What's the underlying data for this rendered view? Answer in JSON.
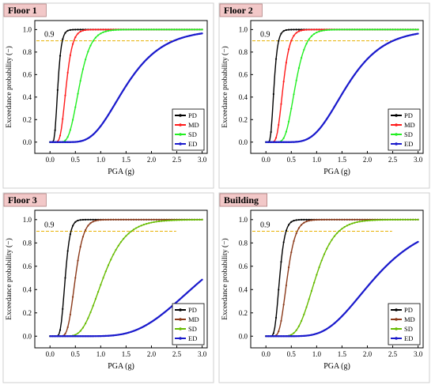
{
  "chart_data": [
    {
      "type": "line",
      "panel_label": "Floor 1",
      "xlabel": "PGA (g)",
      "ylabel": "Exceedance probability (−)",
      "xlim": [
        -0.3,
        3.1
      ],
      "ylim": [
        -0.1,
        1.08
      ],
      "x_ticks": [
        "0.0",
        "0.5",
        "1.0",
        "1.5",
        "2.0",
        "2.5",
        "3.0"
      ],
      "y_ticks": [
        "0.0",
        "0.2",
        "0.4",
        "0.6",
        "0.8",
        "1.0"
      ],
      "threshold": {
        "label": "0.9",
        "value": 0.9,
        "color": "#e8b000"
      },
      "legend_position": "lower-right",
      "series": [
        {
          "name": "PD",
          "color": "#000000",
          "median": 0.155,
          "beta": 0.35
        },
        {
          "name": "MD",
          "color": "#ff1a1a",
          "median": 0.32,
          "beta": 0.3
        },
        {
          "name": "SD",
          "color": "#22ee22",
          "median": 0.58,
          "beta": 0.3
        },
        {
          "name": "ED",
          "color": "#1a1acc",
          "median": 1.5,
          "beta": 0.38
        }
      ]
    },
    {
      "type": "line",
      "panel_label": "Floor 2",
      "xlabel": "PGA (g)",
      "ylabel": "Exceedance probability (−)",
      "xlim": [
        -0.3,
        3.1
      ],
      "ylim": [
        -0.1,
        1.08
      ],
      "x_ticks": [
        "0.0",
        "0.5",
        "1.0",
        "1.5",
        "2.0",
        "2.5",
        "3.0"
      ],
      "y_ticks": [
        "0.0",
        "0.2",
        "0.4",
        "0.6",
        "0.8",
        "1.0"
      ],
      "threshold": {
        "label": "0.9",
        "value": 0.9,
        "color": "#e8b000"
      },
      "legend_position": "lower-right",
      "series": [
        {
          "name": "PD",
          "color": "#000000",
          "median": 0.16,
          "beta": 0.35
        },
        {
          "name": "MD",
          "color": "#ff1a1a",
          "median": 0.34,
          "beta": 0.3
        },
        {
          "name": "SD",
          "color": "#22ee22",
          "median": 0.58,
          "beta": 0.28
        },
        {
          "name": "ED",
          "color": "#1a1acc",
          "median": 1.6,
          "beta": 0.35
        }
      ]
    },
    {
      "type": "line",
      "panel_label": "Floor 3",
      "xlabel": "PGA (g)",
      "ylabel": "Exceedance probability (−)",
      "xlim": [
        -0.3,
        3.1
      ],
      "ylim": [
        -0.1,
        1.08
      ],
      "x_ticks": [
        "0.0",
        "0.5",
        "1.0",
        "1.5",
        "2.0",
        "2.5",
        "3.0"
      ],
      "y_ticks": [
        "0.0",
        "0.2",
        "0.4",
        "0.6",
        "0.8",
        "1.0"
      ],
      "threshold": {
        "label": "0.9",
        "value": 0.9,
        "color": "#e8b000"
      },
      "legend_position": "lower-right",
      "series": [
        {
          "name": "PD",
          "color": "#000000",
          "median": 0.3,
          "beta": 0.25
        },
        {
          "name": "MD",
          "color": "#8b3a1a",
          "median": 0.5,
          "beta": 0.25
        },
        {
          "name": "SD",
          "color": "#66bb00",
          "median": 1.05,
          "beta": 0.33
        },
        {
          "name": "ED",
          "color": "#1a1acc",
          "median": 3.04,
          "beta": 0.36
        }
      ]
    },
    {
      "type": "line",
      "panel_label": "Building",
      "xlabel": "PGA (g)",
      "ylabel": "Exceedance probability (−)",
      "xlim": [
        -0.3,
        3.1
      ],
      "ylim": [
        -0.1,
        1.08
      ],
      "x_ticks": [
        "0.0",
        "0.5",
        "1.0",
        "1.5",
        "2.0",
        "2.5",
        "3.0"
      ],
      "y_ticks": [
        "0.0",
        "0.2",
        "0.4",
        "0.6",
        "0.8",
        "1.0"
      ],
      "threshold": {
        "label": "0.9",
        "value": 0.9,
        "color": "#e8b000"
      },
      "legend_position": "lower-right",
      "series": [
        {
          "name": "PD",
          "color": "#000000",
          "median": 0.27,
          "beta": 0.3
        },
        {
          "name": "MD",
          "color": "#8b3a1a",
          "median": 0.42,
          "beta": 0.3
        },
        {
          "name": "SD",
          "color": "#66bb00",
          "median": 0.98,
          "beta": 0.3
        },
        {
          "name": "ED",
          "color": "#1a1acc",
          "median": 2.15,
          "beta": 0.38
        }
      ]
    }
  ]
}
